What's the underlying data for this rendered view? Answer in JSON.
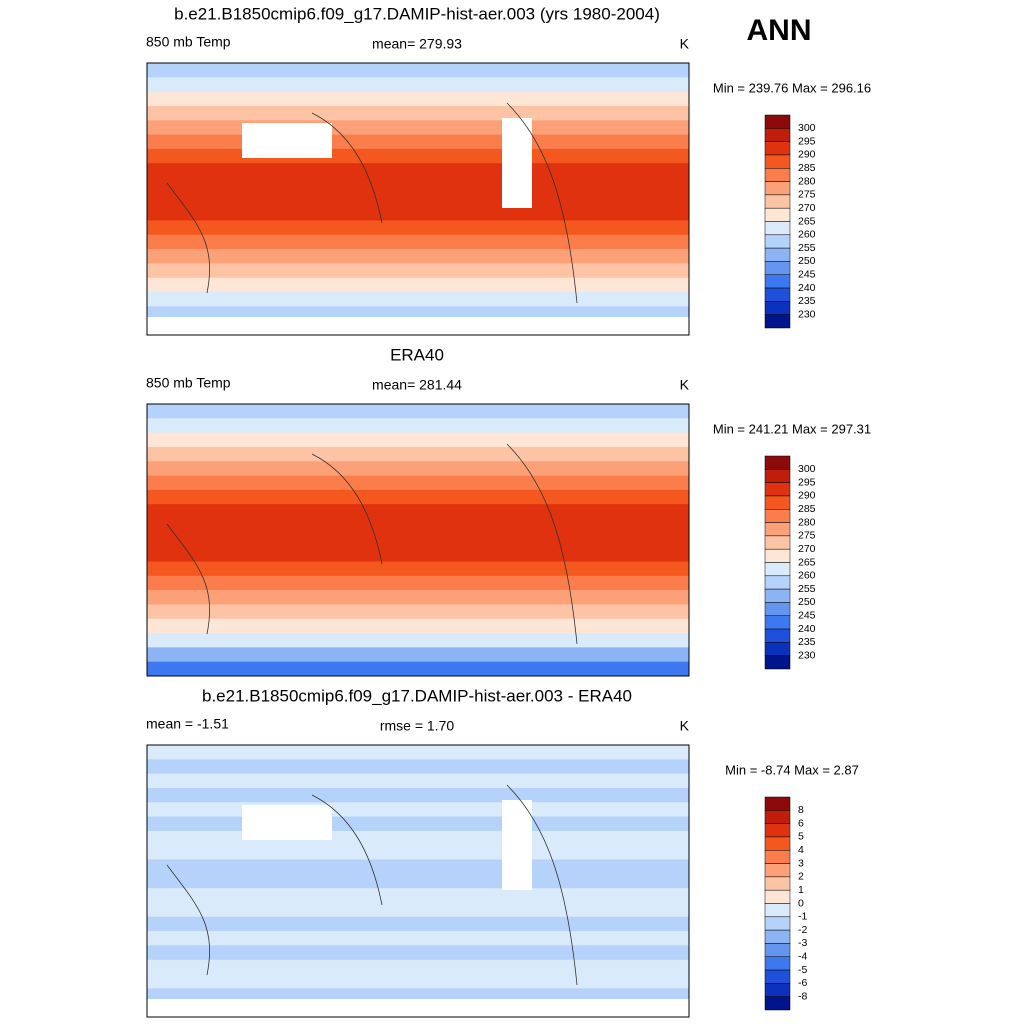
{
  "season": "ANN",
  "panels": [
    {
      "title": "b.e21.B1850cmip6.f09_g17.DAMIP-hist-aer.003 (yrs 1980-2004)",
      "left": "850 mb Temp",
      "center": "mean= 279.93",
      "right": "K",
      "minmax": "Min = 239.76 Max = 296.16",
      "colorbar": {
        "labels": [
          "300",
          "295",
          "290",
          "285",
          "280",
          "275",
          "270",
          "265",
          "260",
          "255",
          "250",
          "245",
          "240",
          "235",
          "230"
        ],
        "colors": [
          "#8c0a0a",
          "#c01e0a",
          "#e0320f",
          "#f4581e",
          "#fa7d4b",
          "#fca078",
          "#fdc3a5",
          "#fde6d5",
          "#d9eafa",
          "#b4d2fa",
          "#8cb4f5",
          "#6496f0",
          "#3c78f0",
          "#1e50dc",
          "#0a32be",
          "#00148c"
        ]
      }
    },
    {
      "title": "ERA40",
      "left": "850 mb Temp",
      "center": "mean= 281.44",
      "right": "K",
      "minmax": "Min = 241.21 Max = 297.31",
      "colorbar": {
        "labels": [
          "300",
          "295",
          "290",
          "285",
          "280",
          "275",
          "270",
          "265",
          "260",
          "255",
          "250",
          "245",
          "240",
          "235",
          "230"
        ],
        "colors": [
          "#8c0a0a",
          "#c01e0a",
          "#e0320f",
          "#f4581e",
          "#fa7d4b",
          "#fca078",
          "#fdc3a5",
          "#fde6d5",
          "#d9eafa",
          "#b4d2fa",
          "#8cb4f5",
          "#6496f0",
          "#3c78f0",
          "#1e50dc",
          "#0a32be",
          "#00148c"
        ]
      }
    },
    {
      "title": "b.e21.B1850cmip6.f09_g17.DAMIP-hist-aer.003 - ERA40",
      "left": "mean =  -1.51",
      "center": "rmse =   1.70",
      "right": "K",
      "minmax": "Min =  -8.74 Max =   2.87",
      "colorbar": {
        "labels": [
          "8",
          "6",
          "5",
          "4",
          "3",
          "2",
          "1",
          "0",
          "-1",
          "-2",
          "-3",
          "-4",
          "-5",
          "-6",
          "-8"
        ],
        "colors": [
          "#8c0a0a",
          "#c01e0a",
          "#e0320f",
          "#f4581e",
          "#fa7d4b",
          "#fca078",
          "#fdc3a5",
          "#fde6d5",
          "#d9eafa",
          "#b4d2fa",
          "#8cb4f5",
          "#6496f0",
          "#3c78f0",
          "#1e50dc",
          "#0a32be",
          "#00148c"
        ]
      }
    }
  ]
}
